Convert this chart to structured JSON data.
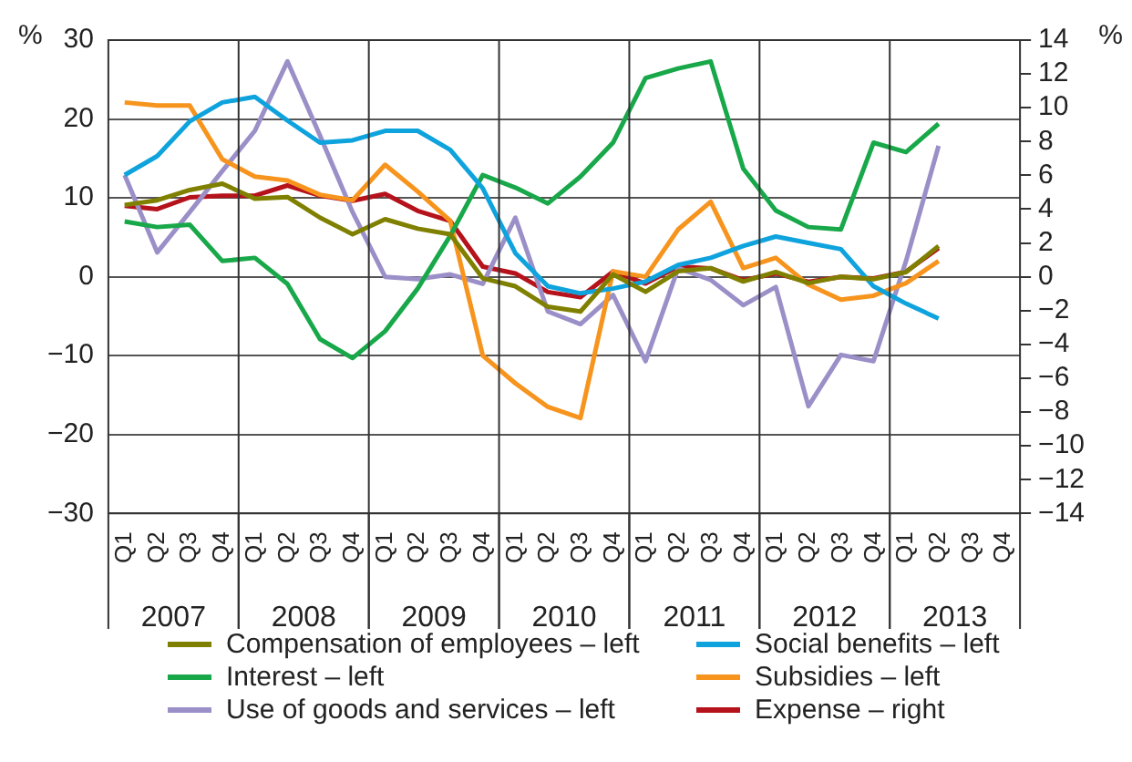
{
  "chart_data": {
    "type": "line",
    "ylabel": "%",
    "y2label": "%",
    "categories": [
      "Q1",
      "Q2",
      "Q3",
      "Q4",
      "Q1",
      "Q2",
      "Q3",
      "Q4",
      "Q1",
      "Q2",
      "Q3",
      "Q4",
      "Q1",
      "Q2",
      "Q3",
      "Q4",
      "Q1",
      "Q2",
      "Q3",
      "Q4",
      "Q1",
      "Q2",
      "Q3",
      "Q4",
      "Q1",
      "Q2",
      "Q3",
      "Q4"
    ],
    "annotations": [
      "2007",
      "2008",
      "2009",
      "2010",
      "2011",
      "2012",
      "2013"
    ],
    "series": [
      {
        "name": "Compensation of employees – left",
        "color": "#808000",
        "values": [
          9.1,
          9.7,
          11.0,
          11.8,
          9.9,
          10.1,
          7.5,
          5.4,
          7.3,
          6.1,
          5.4,
          -0.2,
          -1.2,
          -3.8,
          -4.4,
          0.3,
          -1.9,
          0.7,
          1.1,
          -0.6,
          0.6,
          -0.8,
          0.0,
          -0.3,
          0.6,
          3.9,
          null,
          null
        ]
      },
      {
        "name": "Social benefits – left",
        "color": "#0fa3de",
        "values": [
          12.9,
          15.3,
          19.7,
          22.1,
          22.8,
          19.8,
          17.0,
          17.3,
          18.5,
          18.5,
          16.1,
          11.2,
          3.0,
          -1.2,
          -2.1,
          -1.5,
          -0.6,
          1.5,
          2.4,
          3.9,
          5.1,
          4.3,
          3.5,
          -1.2,
          -3.4,
          -5.3,
          null,
          null
        ]
      },
      {
        "name": "Interest – left",
        "color": "#18a84a",
        "values": [
          7.0,
          6.3,
          6.6,
          2.0,
          2.4,
          -0.9,
          -7.9,
          -10.3,
          -6.9,
          -1.5,
          5.2,
          12.9,
          11.3,
          9.3,
          12.7,
          17.0,
          25.2,
          26.4,
          27.3,
          13.7,
          8.4,
          6.3,
          6.0,
          17.0,
          15.8,
          19.4,
          null,
          null
        ]
      },
      {
        "name": "Subsidies – left",
        "color": "#f7941d",
        "values": [
          22.1,
          21.7,
          21.7,
          14.9,
          12.7,
          12.2,
          10.4,
          9.7,
          14.2,
          10.8,
          7.1,
          -10.0,
          -13.5,
          -16.5,
          -17.9,
          0.7,
          0.0,
          6.0,
          9.5,
          1.1,
          2.4,
          -1.0,
          -2.9,
          -2.4,
          -0.8,
          2.0,
          null,
          null
        ]
      },
      {
        "name": "Use of goods and services – left",
        "color": "#9b8fc8",
        "values": [
          12.9,
          3.1,
          8.2,
          13.4,
          18.5,
          27.3,
          17.9,
          8.2,
          0.0,
          -0.3,
          0.3,
          -0.9,
          7.5,
          -4.4,
          -6.0,
          -2.3,
          -10.7,
          1.1,
          -0.4,
          -3.6,
          -1.3,
          -16.4,
          -9.9,
          -10.7,
          2.0,
          16.6,
          null,
          null
        ]
      },
      {
        "name": "Expense – right",
        "color": "#b5121b",
        "axis": "y2",
        "values": [
          4.2,
          4.0,
          4.7,
          4.8,
          4.8,
          5.4,
          4.8,
          4.5,
          4.9,
          3.9,
          3.3,
          0.6,
          0.2,
          -0.9,
          -1.2,
          0.3,
          -0.4,
          0.6,
          0.5,
          -0.2,
          0.2,
          -0.3,
          0.0,
          -0.1,
          0.3,
          1.7,
          null,
          null
        ]
      }
    ],
    "ylim": [
      -30,
      30
    ],
    "yticks": [
      {
        "value": -30,
        "label": "−30"
      },
      {
        "value": -20,
        "label": "−20"
      },
      {
        "value": -10,
        "label": "−10"
      },
      0,
      10,
      20,
      30
    ],
    "y2lim": [
      -14,
      14
    ],
    "y2ticks": [
      {
        "value": -14,
        "label": "−14"
      },
      {
        "value": -12,
        "label": "−12"
      },
      {
        "value": -10,
        "label": "−10"
      },
      {
        "value": -8,
        "label": "−8"
      },
      {
        "value": -6,
        "label": "−6"
      },
      {
        "value": -4,
        "label": "−4"
      },
      {
        "value": -2,
        "label": "−2"
      },
      0,
      2,
      4,
      6,
      8,
      10,
      12,
      14
    ],
    "grid": true,
    "legend": "bottom"
  }
}
